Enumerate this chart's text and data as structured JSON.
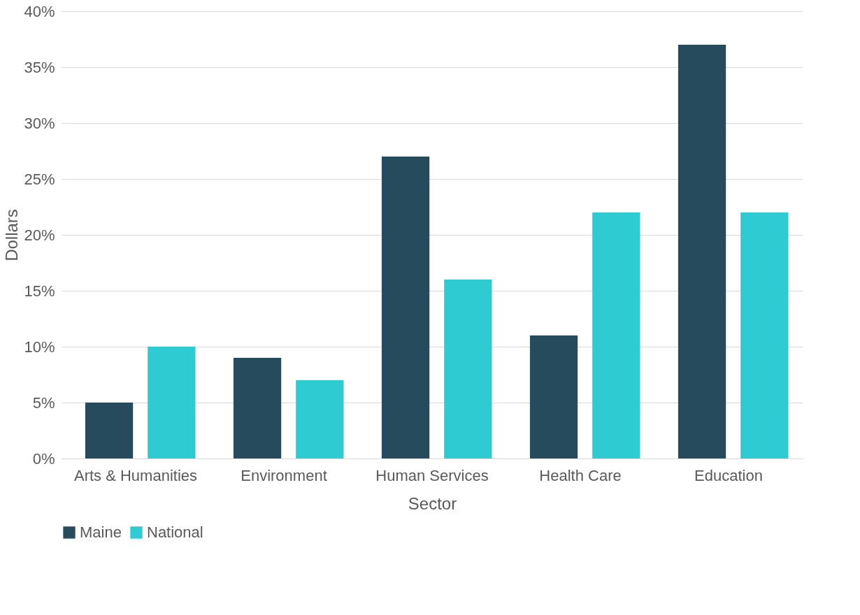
{
  "chart_data": {
    "type": "bar",
    "xlabel": "Sector",
    "ylabel": "Dollars",
    "categories": [
      "Arts & Humanities",
      "Environment",
      "Human Services",
      "Health Care",
      "Education"
    ],
    "series": [
      {
        "name": "Maine",
        "color": "#264b5d",
        "values": [
          5,
          9,
          27,
          11,
          37
        ]
      },
      {
        "name": "National",
        "color": "#2ecbd3",
        "values": [
          10,
          7,
          16,
          22,
          22
        ]
      }
    ],
    "ylim": [
      0,
      40
    ],
    "yticks": [
      {
        "value": 0,
        "label": "0%"
      },
      {
        "value": 5,
        "label": "5%"
      },
      {
        "value": 10,
        "label": "10%"
      },
      {
        "value": 15,
        "label": "15%"
      },
      {
        "value": 20,
        "label": "20%"
      },
      {
        "value": 25,
        "label": "25%"
      },
      {
        "value": 30,
        "label": "30%"
      },
      {
        "value": 35,
        "label": "35%"
      },
      {
        "value": 40,
        "label": "40%"
      }
    ],
    "grid": "y",
    "legend": "bottom"
  }
}
